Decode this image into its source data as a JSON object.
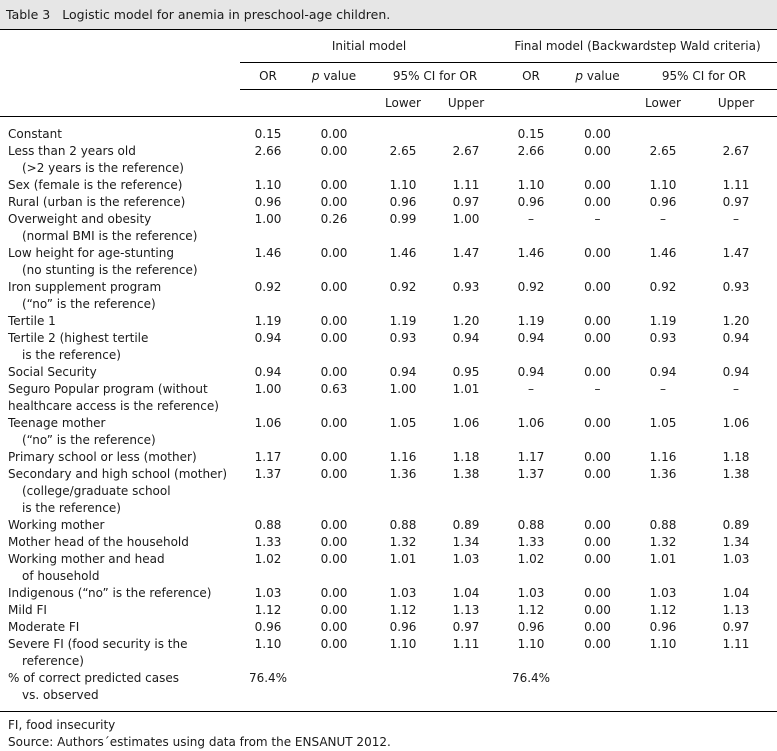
{
  "caption": {
    "number": "Table 3",
    "title": "Logistic model for anemia in preschool-age children."
  },
  "header": {
    "initial_model": "Initial model",
    "final_model": "Final model (Backwardstep Wald criteria)",
    "or": "OR",
    "p_italic": "p",
    "p_rest": " value",
    "ci": "95% CI for OR",
    "lower": "Lower",
    "upper": "Upper"
  },
  "rows": [
    {
      "label": [
        "Constant"
      ],
      "v": [
        "0.15",
        "0.00",
        "",
        "",
        "0.15",
        "0.00",
        "",
        ""
      ]
    },
    {
      "label": [
        "Less than 2 years old",
        "(>2 years is the reference)"
      ],
      "v": [
        "2.66",
        "0.00",
        "2.65",
        "2.67",
        "2.66",
        "0.00",
        "2.65",
        "2.67"
      ]
    },
    {
      "label": [
        "Sex (female is the reference)"
      ],
      "v": [
        "1.10",
        "0.00",
        "1.10",
        "1.11",
        "1.10",
        "0.00",
        "1.10",
        "1.11"
      ]
    },
    {
      "label": [
        "Rural (urban is the reference)"
      ],
      "v": [
        "0.96",
        "0.00",
        "0.96",
        "0.97",
        "0.96",
        "0.00",
        "0.96",
        "0.97"
      ]
    },
    {
      "label": [
        "Overweight and obesity",
        "(normal BMI is the reference)"
      ],
      "v": [
        "1.00",
        "0.26",
        "0.99",
        "1.00",
        "–",
        "–",
        "–",
        "–"
      ]
    },
    {
      "label": [
        "Low height for age-stunting",
        "(no stunting is the reference)"
      ],
      "v": [
        "1.46",
        "0.00",
        "1.46",
        "1.47",
        "1.46",
        "0.00",
        "1.46",
        "1.47"
      ]
    },
    {
      "label": [
        "Iron supplement program",
        "(“no” is the reference)"
      ],
      "v": [
        "0.92",
        "0.00",
        "0.92",
        "0.93",
        "0.92",
        "0.00",
        "0.92",
        "0.93"
      ]
    },
    {
      "label": [
        "Tertile 1"
      ],
      "v": [
        "1.19",
        "0.00",
        "1.19",
        "1.20",
        "1.19",
        "0.00",
        "1.19",
        "1.20"
      ]
    },
    {
      "label": [
        "Tertile 2 (highest tertile",
        "is the reference)"
      ],
      "v": [
        "0.94",
        "0.00",
        "0.93",
        "0.94",
        "0.94",
        "0.00",
        "0.93",
        "0.94"
      ]
    },
    {
      "label": [
        "Social Security"
      ],
      "v": [
        "0.94",
        "0.00",
        "0.94",
        "0.95",
        "0.94",
        "0.00",
        "0.94",
        "0.94"
      ]
    },
    {
      "label": [
        "Seguro Popular program (without",
        "healthcare access is the reference)"
      ],
      "flat": true,
      "v": [
        "1.00",
        "0.63",
        "1.00",
        "1.01",
        "–",
        "–",
        "–",
        "–"
      ]
    },
    {
      "label": [
        "Teenage mother",
        "(“no” is the reference)"
      ],
      "v": [
        "1.06",
        "0.00",
        "1.05",
        "1.06",
        "1.06",
        "0.00",
        "1.05",
        "1.06"
      ]
    },
    {
      "label": [
        "Primary school or less (mother)"
      ],
      "v": [
        "1.17",
        "0.00",
        "1.16",
        "1.18",
        "1.17",
        "0.00",
        "1.16",
        "1.18"
      ]
    },
    {
      "label": [
        "Secondary and high school (mother)",
        "(college/graduate school",
        "is the reference)"
      ],
      "v": [
        "1.37",
        "0.00",
        "1.36",
        "1.38",
        "1.37",
        "0.00",
        "1.36",
        "1.38"
      ]
    },
    {
      "label": [
        "Working mother"
      ],
      "v": [
        "0.88",
        "0.00",
        "0.88",
        "0.89",
        "0.88",
        "0.00",
        "0.88",
        "0.89"
      ]
    },
    {
      "label": [
        "Mother head of the household"
      ],
      "v": [
        "1.33",
        "0.00",
        "1.32",
        "1.34",
        "1.33",
        "0.00",
        "1.32",
        "1.34"
      ]
    },
    {
      "label": [
        "Working mother and head",
        "of household"
      ],
      "v": [
        "1.02",
        "0.00",
        "1.01",
        "1.03",
        "1.02",
        "0.00",
        "1.01",
        "1.03"
      ]
    },
    {
      "label": [
        "Indigenous (“no” is the reference)"
      ],
      "v": [
        "1.03",
        "0.00",
        "1.03",
        "1.04",
        "1.03",
        "0.00",
        "1.03",
        "1.04"
      ]
    },
    {
      "label": [
        "Mild FI"
      ],
      "v": [
        "1.12",
        "0.00",
        "1.12",
        "1.13",
        "1.12",
        "0.00",
        "1.12",
        "1.13"
      ]
    },
    {
      "label": [
        "Moderate FI"
      ],
      "v": [
        "0.96",
        "0.00",
        "0.96",
        "0.97",
        "0.96",
        "0.00",
        "0.96",
        "0.97"
      ]
    },
    {
      "label": [
        "Severe FI (food security is the",
        "reference)"
      ],
      "v": [
        "1.10",
        "0.00",
        "1.10",
        "1.11",
        "1.10",
        "0.00",
        "1.10",
        "1.11"
      ]
    },
    {
      "label": [
        "% of correct predicted cases",
        "vs. observed"
      ],
      "v": [
        "76.4%",
        "",
        "",
        "",
        "76.4%",
        "",
        "",
        ""
      ]
    }
  ],
  "footnotes": {
    "abbrev": "FI, food insecurity",
    "source": "Source: Authors´estimates using data from the ENSANUT 2012."
  }
}
